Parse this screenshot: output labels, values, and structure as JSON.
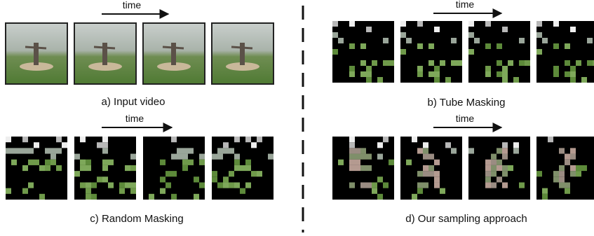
{
  "panels": [
    {
      "time_label": "time",
      "caption": "a) Input video"
    },
    {
      "time_label": "time",
      "caption": "b) Tube Masking"
    },
    {
      "time_label": "time",
      "caption": "c) Random Masking"
    },
    {
      "time_label": "time",
      "caption": "d) Our sampling approach"
    }
  ]
}
